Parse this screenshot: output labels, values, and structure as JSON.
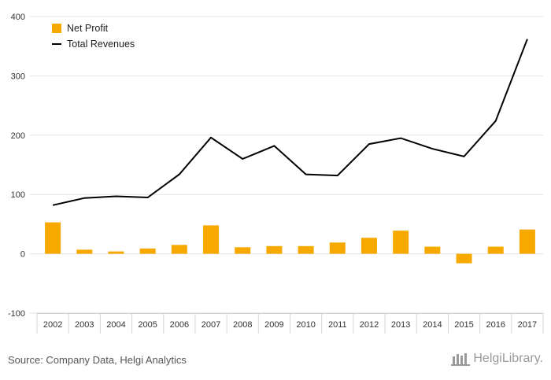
{
  "chart_data": {
    "type": "bar+line",
    "categories": [
      "2002",
      "2003",
      "2004",
      "2005",
      "2006",
      "2007",
      "2008",
      "2009",
      "2010",
      "2011",
      "2012",
      "2013",
      "2014",
      "2015",
      "2016",
      "2017"
    ],
    "series": [
      {
        "name": "Net Profit",
        "type": "bar",
        "color": "#F7A900",
        "values": [
          53,
          7,
          4,
          9,
          15,
          48,
          11,
          13,
          13,
          19,
          27,
          39,
          12,
          -16,
          12,
          41
        ]
      },
      {
        "name": "Total Revenues",
        "type": "line",
        "color": "#000000",
        "values": [
          82,
          94,
          97,
          95,
          134,
          196,
          160,
          182,
          134,
          132,
          185,
          195,
          177,
          164,
          224,
          362
        ]
      }
    ],
    "y_ticks": [
      -100,
      0,
      100,
      200,
      300,
      400
    ],
    "ylim": [
      -100,
      400
    ],
    "legend_position": "top-left",
    "grid": true
  },
  "source": "Source: Company Data, Helgi Analytics",
  "brand": "HelgiLibrary."
}
